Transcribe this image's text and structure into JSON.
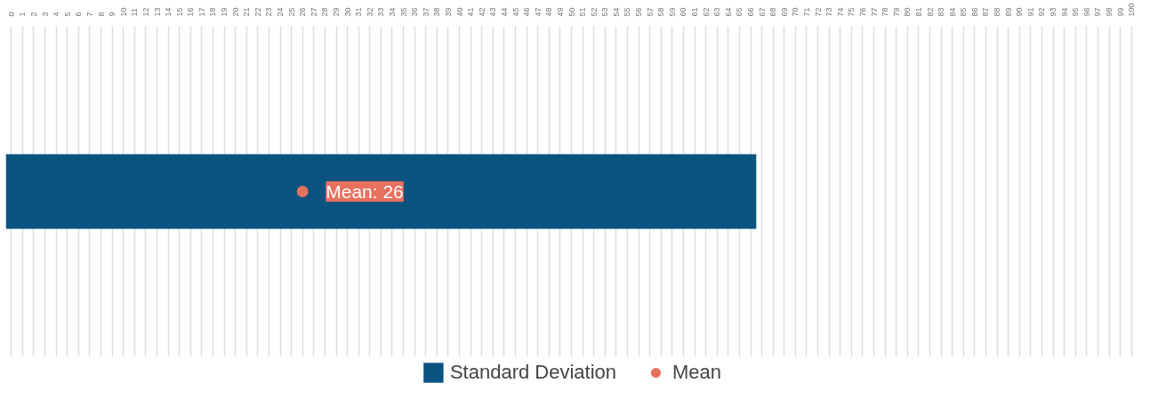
{
  "chart_data": {
    "type": "bar",
    "orientation": "horizontal",
    "categories": [
      null
    ],
    "tick_labels": "x",
    "grid": "x",
    "legend": "bottom",
    "xlim": [
      -0.5,
      100.5
    ],
    "xticks": [
      0,
      1,
      2,
      3,
      4,
      5,
      6,
      7,
      8,
      9,
      10,
      11,
      12,
      13,
      14,
      15,
      16,
      17,
      18,
      19,
      20,
      21,
      22,
      23,
      24,
      25,
      26,
      27,
      28,
      29,
      30,
      31,
      32,
      33,
      34,
      35,
      36,
      37,
      38,
      39,
      40,
      41,
      42,
      43,
      44,
      45,
      46,
      47,
      48,
      49,
      50,
      51,
      52,
      53,
      54,
      55,
      56,
      57,
      58,
      59,
      60,
      61,
      62,
      63,
      64,
      65,
      66,
      67,
      68,
      69,
      70,
      71,
      72,
      73,
      74,
      75,
      76,
      77,
      78,
      79,
      80,
      81,
      82,
      83,
      84,
      85,
      86,
      87,
      88,
      89,
      90,
      91,
      92,
      93,
      94,
      95,
      96,
      97,
      98,
      99,
      100
    ],
    "series": [
      {
        "name": "Standard Deviation",
        "color": "#0b5380",
        "values": [
          67
        ],
        "base": [
          -0.5
        ]
      },
      {
        "name": "Mean",
        "type": "scatter",
        "color": "#e8705e",
        "marker": "circle",
        "values": [
          26
        ]
      }
    ],
    "annotations": [
      {
        "text": "Mean: 26",
        "x": 26
      }
    ]
  }
}
